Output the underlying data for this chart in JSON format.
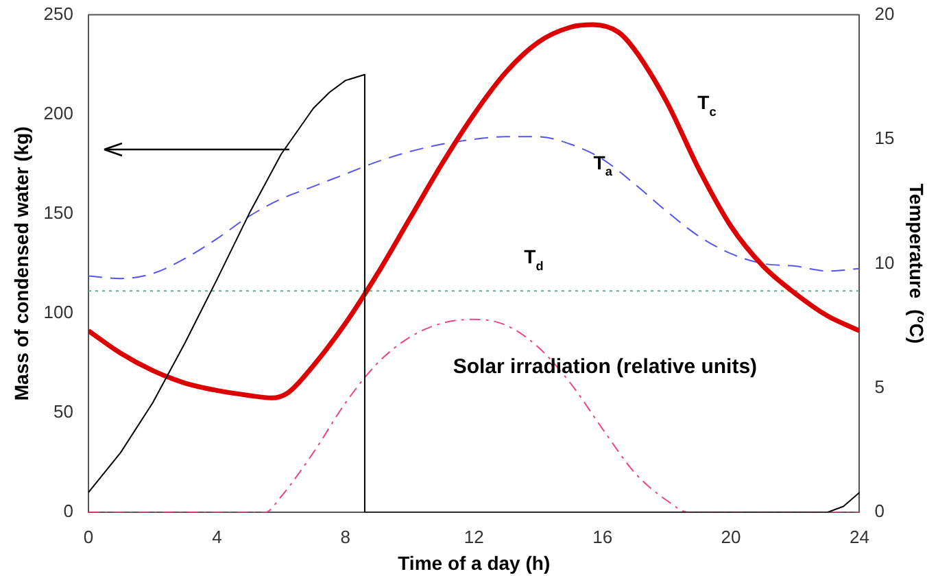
{
  "chart_data": {
    "type": "line",
    "xlabel": "Time of a day (h)",
    "ylabel": "Mass of condensed water (kg)",
    "y2label": "Temperature  (°C)",
    "xlim": [
      0,
      24
    ],
    "xticks": [
      0,
      4,
      8,
      12,
      16,
      20,
      24
    ],
    "ylim": [
      0,
      250
    ],
    "yticks": [
      0,
      50,
      100,
      150,
      200,
      250
    ],
    "y2lim": [
      0,
      20
    ],
    "y2ticks": [
      0,
      5,
      10,
      15,
      20
    ],
    "grid": false,
    "legend": false,
    "marker": "none",
    "series": [
      {
        "color": "#000000",
        "line_style": "solid",
        "x": [
          0,
          1,
          2,
          3,
          4,
          5,
          6,
          7,
          7.5,
          8,
          8.6,
          8.6,
          10,
          14,
          18,
          22,
          23,
          23.5,
          24
        ],
        "values": [
          10,
          30,
          55,
          85,
          117,
          150,
          180,
          203,
          211,
          217,
          220,
          0,
          0,
          0,
          0,
          0,
          0,
          3,
          10
        ]
      },
      {
        "name": "T$_{c}$",
        "color": "#dd0000",
        "line_style": "solid",
        "axis": "y2",
        "x": [
          0,
          1,
          2,
          3,
          4,
          5,
          5.7,
          6.2,
          7,
          8,
          9,
          10,
          11,
          12,
          13,
          14,
          15,
          15.7,
          16.5,
          17,
          18,
          19,
          20,
          21,
          22,
          23,
          24
        ],
        "values": [
          7.3,
          6.4,
          5.7,
          5.2,
          4.9,
          4.7,
          4.6,
          4.8,
          5.9,
          7.6,
          9.6,
          11.8,
          14.0,
          16.0,
          17.7,
          18.9,
          19.5,
          19.6,
          19.3,
          18.6,
          16.5,
          13.8,
          11.5,
          9.9,
          8.8,
          7.9,
          7.3
        ]
      },
      {
        "name": "T$_{a}$",
        "color": "#5555ee",
        "line_style": "dashed",
        "axis": "y2",
        "x": [
          0,
          1,
          2,
          3,
          4,
          5,
          6,
          7,
          8,
          9,
          10,
          11,
          12,
          13,
          14,
          15,
          16,
          17,
          18,
          19,
          20,
          21,
          22,
          23,
          24
        ],
        "values": [
          9.5,
          9.4,
          9.6,
          10.2,
          11.0,
          11.9,
          12.6,
          13.1,
          13.6,
          14.1,
          14.5,
          14.8,
          15.0,
          15.1,
          15.1,
          14.8,
          14.2,
          13.2,
          12.1,
          11.1,
          10.4,
          10.0,
          9.9,
          9.7,
          9.8
        ]
      },
      {
        "name": "T$_{d}$",
        "color": "#66aa88",
        "line_style": "dotted",
        "axis": "y2",
        "x": [
          0,
          24
        ],
        "values": [
          8.9,
          8.9
        ]
      },
      {
        "name": "Solar irradiation (relative units)",
        "color": "#ee4488",
        "line_style": "dashdot",
        "x": [
          0,
          5.5,
          6,
          7,
          8,
          9,
          10,
          11,
          12,
          13,
          14,
          15,
          16,
          17,
          18,
          18.7,
          24
        ],
        "values": [
          0,
          0,
          8,
          30,
          55,
          75,
          88,
          95,
          97,
          94,
          83,
          65,
          42,
          20,
          6,
          0,
          0
        ]
      }
    ]
  }
}
